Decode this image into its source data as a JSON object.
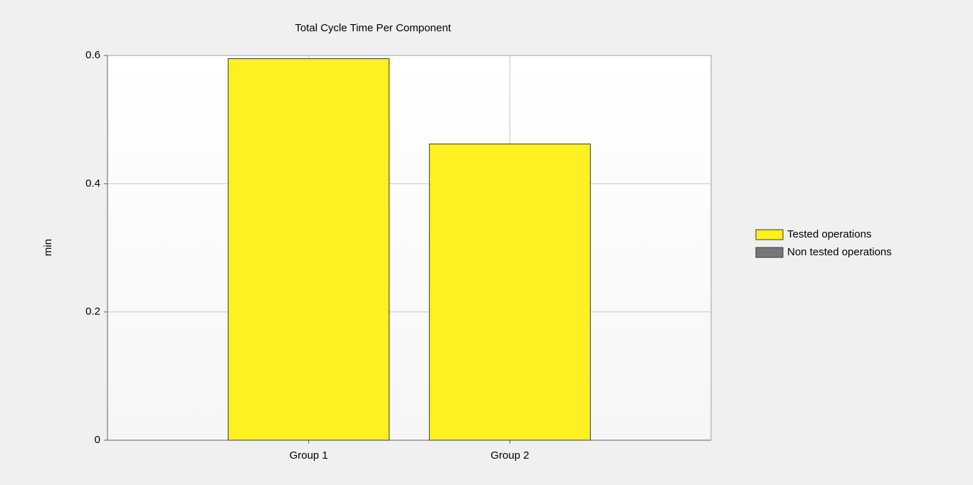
{
  "chart_data": {
    "type": "bar",
    "stacked": true,
    "title": "Total Cycle Time Per Component",
    "y_label": "min",
    "categories": [
      "Group 1",
      "Group 2"
    ],
    "series": [
      {
        "name": "Tested operations",
        "color": "#fff022",
        "values": [
          0.595,
          0.462
        ]
      },
      {
        "name": "Non tested operations",
        "color": "#777777",
        "values": [
          0,
          0
        ]
      }
    ],
    "ylim": [
      0,
      0.6
    ],
    "yticks": [
      0,
      0.2,
      0.4,
      0.6
    ],
    "grid": true,
    "legend": "right"
  }
}
